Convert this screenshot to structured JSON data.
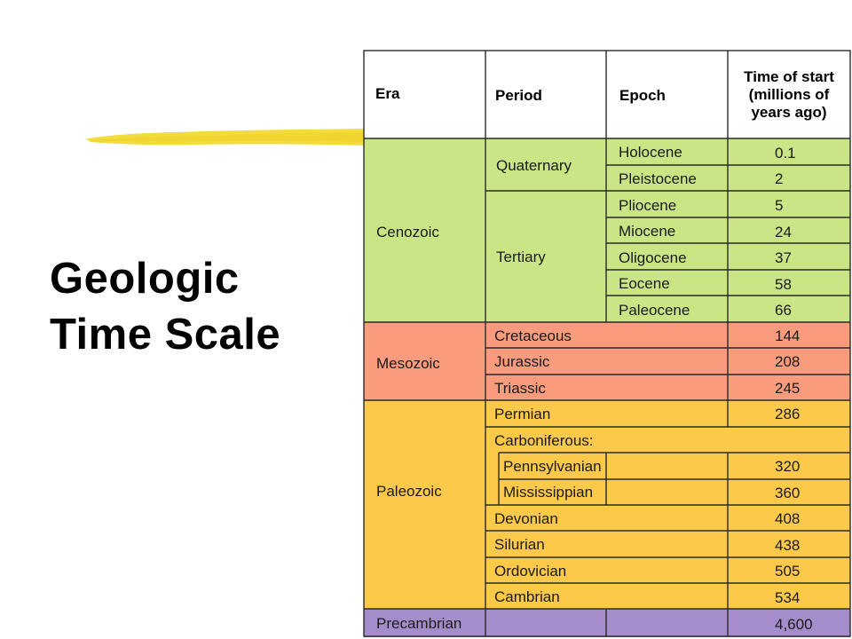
{
  "slide": {
    "title_line1": "Geologic",
    "title_line2": "Time Scale"
  },
  "colors": {
    "cenozoic": "#c9e585",
    "mesozoic": "#f99b7d",
    "paleozoic": "#fdc94a",
    "precambrian": "#a58ccb",
    "accent_stroke": "#f2dc3c"
  },
  "table": {
    "headers": {
      "era": "Era",
      "period": "Period",
      "epoch": "Epoch",
      "time_line1": "Time of start",
      "time_line2": "(millions of",
      "time_line3": "years ago)"
    },
    "eras": [
      "Cenozoic",
      "Mesozoic",
      "Paleozoic",
      "Precambrian"
    ],
    "periods": [
      "Quaternary",
      "Tertiary",
      "Cretaceous",
      "Jurassic",
      "Triassic",
      "Permian",
      "Carboniferous:",
      "Pennsylvanian",
      "Mississippian",
      "Devonian",
      "Silurian",
      "Ordovician",
      "Cambrian"
    ],
    "epochs": [
      "Holocene",
      "Pleistocene",
      "Pliocene",
      "Miocene",
      "Oligocene",
      "Eocene",
      "Paleocene"
    ],
    "times": [
      "0.1",
      "2",
      "5",
      "24",
      "37",
      "58",
      "66",
      "144",
      "208",
      "245",
      "286",
      "320",
      "360",
      "408",
      "438",
      "505",
      "534",
      "4,600"
    ]
  }
}
